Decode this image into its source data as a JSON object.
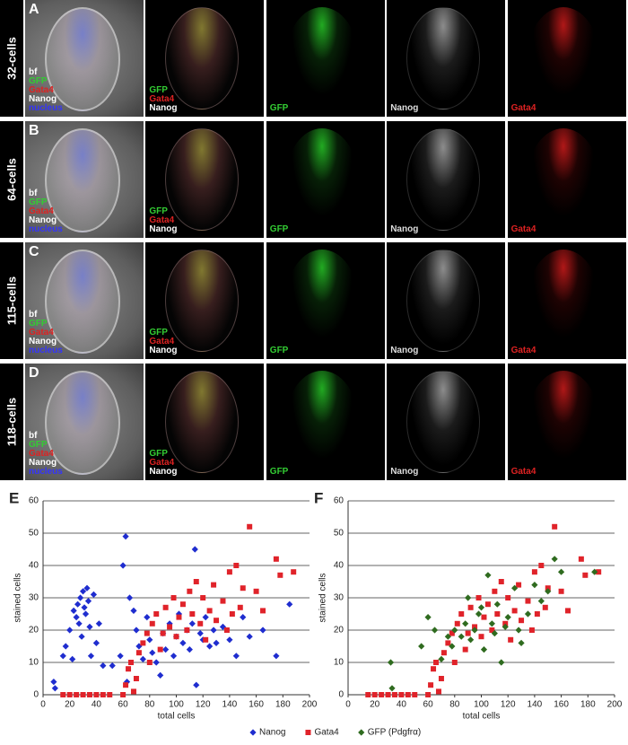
{
  "figure": {
    "rows": [
      {
        "label": "32-cells",
        "letter": "A"
      },
      {
        "label": "64-cells",
        "letter": "B"
      },
      {
        "label": "115-cells",
        "letter": "C"
      },
      {
        "label": "118-cells",
        "letter": "D"
      }
    ],
    "overlays": [
      [
        "bf",
        "GFP",
        "Gata4",
        "Nanog",
        "nucleus"
      ],
      [
        "GFP",
        "Gata4",
        "Nanog"
      ],
      [
        "GFP"
      ],
      [
        "Nanog"
      ],
      [
        "Gata4"
      ]
    ]
  },
  "chart_data": [
    {
      "type": "scatter",
      "title": "E",
      "x_label": "total cells",
      "y_label": "stained cells",
      "xlim": [
        0,
        200
      ],
      "xticks": [
        0,
        20,
        40,
        60,
        80,
        100,
        120,
        140,
        160,
        180,
        200
      ],
      "ylim": [
        0,
        60
      ],
      "yticks": [
        0,
        10,
        20,
        30,
        40,
        50,
        60
      ],
      "grid": true,
      "series": [
        {
          "name": "Nanog",
          "color": "#1f2dcf",
          "marker": "diamond",
          "x": [
            8,
            9,
            15,
            17,
            20,
            22,
            23,
            25,
            26,
            27,
            28,
            29,
            30,
            31,
            32,
            33,
            34,
            35,
            36,
            38,
            40,
            42,
            45,
            52,
            58,
            60,
            62,
            63,
            65,
            68,
            70,
            72,
            75,
            78,
            80,
            82,
            85,
            88,
            90,
            92,
            95,
            98,
            100,
            102,
            105,
            108,
            110,
            112,
            114,
            115,
            118,
            120,
            122,
            125,
            128,
            130,
            135,
            140,
            145,
            150,
            155,
            165,
            175,
            185
          ],
          "values": [
            4,
            2,
            12,
            15,
            20,
            11,
            26,
            24,
            28,
            22,
            30,
            18,
            32,
            27,
            25,
            33,
            29,
            21,
            12,
            31,
            16,
            22,
            9,
            9,
            12,
            40,
            49,
            4,
            30,
            26,
            20,
            15,
            11,
            24,
            17,
            13,
            10,
            6,
            19,
            14,
            22,
            12,
            18,
            25,
            16,
            20,
            14,
            22,
            45,
            3,
            19,
            17,
            24,
            15,
            20,
            16,
            21,
            17,
            12,
            24,
            18,
            20,
            12,
            28
          ]
        },
        {
          "name": "Gata4",
          "color": "#e0232a",
          "marker": "square",
          "x": [
            15,
            20,
            25,
            30,
            35,
            40,
            45,
            50,
            60,
            62,
            64,
            66,
            68,
            70,
            72,
            75,
            78,
            80,
            82,
            85,
            88,
            90,
            92,
            95,
            98,
            100,
            102,
            105,
            108,
            110,
            112,
            115,
            118,
            120,
            122,
            125,
            128,
            130,
            135,
            138,
            140,
            142,
            145,
            148,
            150,
            155,
            160,
            165,
            175,
            178,
            188
          ],
          "values": [
            0,
            0,
            0,
            0,
            0,
            0,
            0,
            0,
            0,
            3,
            8,
            10,
            1,
            5,
            13,
            16,
            19,
            10,
            22,
            25,
            14,
            19,
            27,
            21,
            30,
            18,
            24,
            28,
            20,
            32,
            25,
            35,
            22,
            30,
            17,
            26,
            34,
            23,
            29,
            20,
            38,
            25,
            40,
            27,
            33,
            52,
            32,
            26,
            42,
            37,
            38
          ]
        }
      ]
    },
    {
      "type": "scatter",
      "title": "F",
      "x_label": "total cells",
      "y_label": "stained cells",
      "xlim": [
        0,
        200
      ],
      "xticks": [
        0,
        20,
        40,
        60,
        80,
        100,
        120,
        140,
        160,
        180,
        200
      ],
      "ylim": [
        0,
        60
      ],
      "yticks": [
        0,
        10,
        20,
        30,
        40,
        50,
        60
      ],
      "grid": true,
      "series": [
        {
          "name": "Gata4",
          "color": "#e0232a",
          "marker": "square",
          "x": [
            15,
            20,
            25,
            30,
            35,
            40,
            45,
            50,
            60,
            62,
            64,
            66,
            68,
            70,
            72,
            75,
            78,
            80,
            82,
            85,
            88,
            90,
            92,
            95,
            98,
            100,
            102,
            105,
            108,
            110,
            112,
            115,
            118,
            120,
            122,
            125,
            128,
            130,
            135,
            138,
            140,
            142,
            145,
            148,
            150,
            155,
            160,
            165,
            175,
            178,
            188
          ],
          "values": [
            0,
            0,
            0,
            0,
            0,
            0,
            0,
            0,
            0,
            3,
            8,
            10,
            1,
            5,
            13,
            16,
            19,
            10,
            22,
            25,
            14,
            19,
            27,
            21,
            30,
            18,
            24,
            28,
            20,
            32,
            25,
            35,
            22,
            30,
            17,
            26,
            34,
            23,
            29,
            20,
            38,
            25,
            40,
            27,
            33,
            52,
            32,
            26,
            42,
            37,
            38
          ]
        },
        {
          "name": "GFP (Pdgfrα)",
          "color": "#2f6b1f",
          "marker": "diamond",
          "x": [
            32,
            33,
            55,
            60,
            65,
            70,
            75,
            78,
            80,
            85,
            88,
            90,
            92,
            95,
            98,
            100,
            102,
            105,
            108,
            110,
            112,
            115,
            118,
            120,
            125,
            128,
            130,
            135,
            140,
            145,
            150,
            155,
            160,
            185
          ],
          "values": [
            10,
            2,
            15,
            24,
            20,
            11,
            18,
            15,
            20,
            18,
            22,
            30,
            17,
            20,
            25,
            27,
            14,
            37,
            22,
            19,
            28,
            10,
            21,
            24,
            33,
            20,
            16,
            25,
            34,
            29,
            32,
            42,
            38,
            38
          ]
        }
      ]
    }
  ]
}
